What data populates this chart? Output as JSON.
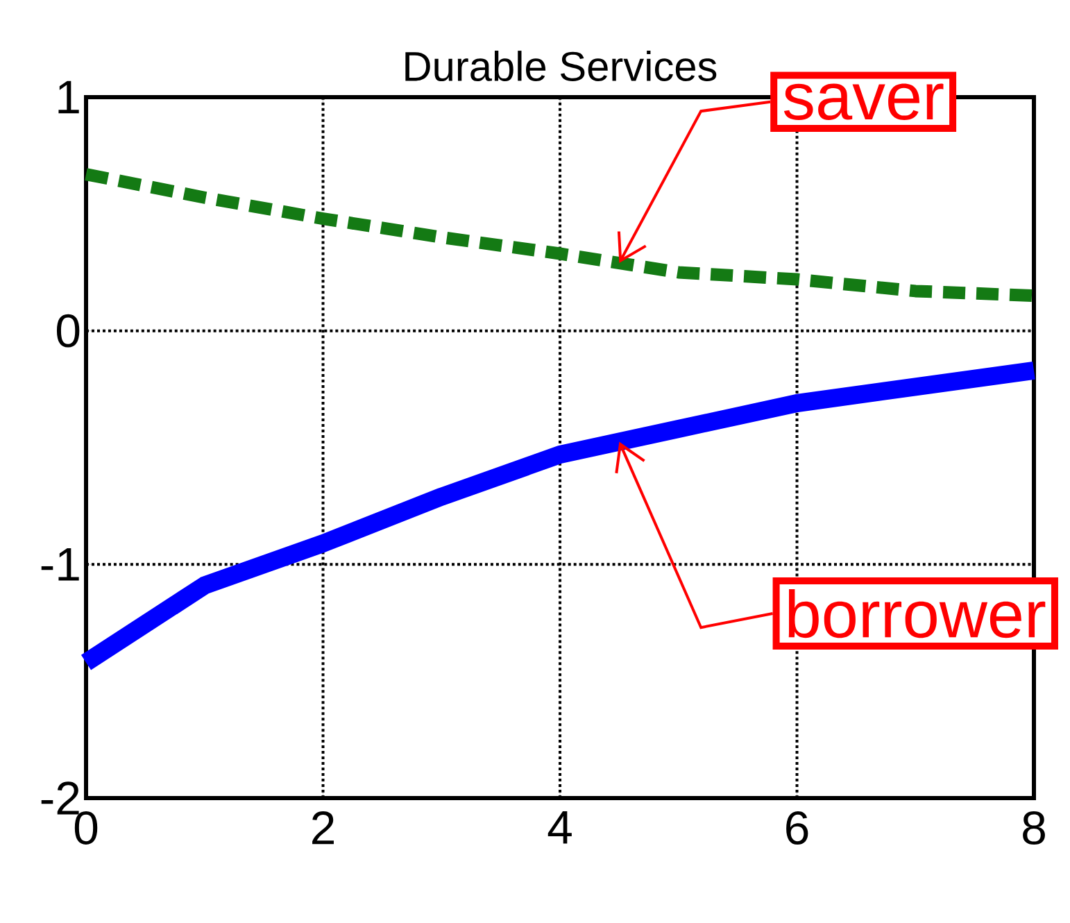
{
  "chart_data": {
    "type": "line",
    "title": "Durable Services",
    "x": [
      0,
      1,
      2,
      3,
      4,
      5,
      6,
      7,
      8
    ],
    "series": [
      {
        "name": "saver",
        "color": "#147a14",
        "line_style": "dashed",
        "values": [
          0.67,
          0.57,
          0.48,
          0.4,
          0.33,
          0.25,
          0.22,
          0.17,
          0.15
        ]
      },
      {
        "name": "borrower",
        "color": "#0000ff",
        "line_style": "solid",
        "values": [
          -1.42,
          -1.09,
          -0.91,
          -0.71,
          -0.53,
          -0.42,
          -0.31,
          -0.24,
          -0.17
        ]
      }
    ],
    "xlim": [
      0,
      8
    ],
    "ylim": [
      -2,
      1
    ],
    "xticks": [
      0,
      2,
      4,
      6,
      8
    ],
    "yticks": [
      -2,
      -1,
      0,
      1
    ],
    "grid": true,
    "marker": "none"
  }
}
